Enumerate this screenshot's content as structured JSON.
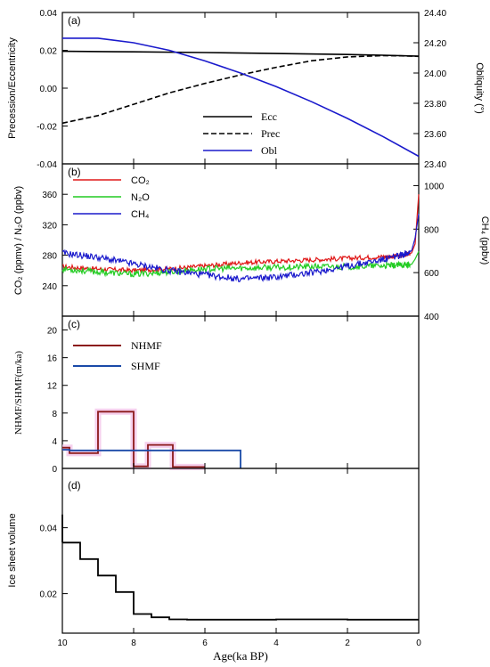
{
  "xaxis": {
    "label": "Age(ka BP)",
    "range": [
      10,
      0
    ],
    "ticks": [
      10,
      8,
      6,
      4,
      2,
      0
    ],
    "tick_labels": [
      "10",
      "8",
      "6",
      "4",
      "2",
      "0"
    ]
  },
  "chart_data": [
    {
      "panel_label": "(a)",
      "type": "line",
      "ylabel": "Precession/Eccentricity",
      "ylim": [
        -0.04,
        0.04
      ],
      "yticks": [
        -0.04,
        -0.02,
        0.0,
        0.02,
        0.04
      ],
      "ytick_labels": [
        "-0.04",
        "-0.02",
        "0.00",
        "0.02",
        "0.04"
      ],
      "ylabel_right": "Obliquity (°)",
      "ylim_right": [
        23.4,
        24.4
      ],
      "yticks_right": [
        23.4,
        23.6,
        23.8,
        24.0,
        24.2,
        24.4
      ],
      "ytick_labels_right": [
        "23.40",
        "23.60",
        "23.80",
        "24.00",
        "24.20",
        "24.40"
      ],
      "legend_position": "bottom-center",
      "series": [
        {
          "name": "Ecc",
          "axis": "left",
          "color": "#000000",
          "dash": "solid",
          "x": [
            10,
            8,
            6,
            4,
            2,
            1,
            0
          ],
          "y": [
            0.0195,
            0.0192,
            0.0188,
            0.0183,
            0.0178,
            0.0174,
            0.0169
          ]
        },
        {
          "name": "Prec",
          "axis": "left",
          "color": "#000000",
          "dash": "dashed",
          "x": [
            10,
            9,
            8,
            7,
            6,
            5,
            4,
            3,
            2,
            1,
            0.5,
            0
          ],
          "y": [
            -0.0185,
            -0.0145,
            -0.0085,
            -0.0025,
            0.0025,
            0.007,
            0.011,
            0.0145,
            0.0165,
            0.0172,
            0.0171,
            0.0168
          ]
        },
        {
          "name": "Obl",
          "axis": "right",
          "color": "#1a1acc",
          "dash": "solid",
          "x": [
            10,
            9,
            8,
            7,
            6,
            5,
            4,
            3,
            2,
            1,
            0
          ],
          "y": [
            24.23,
            24.23,
            24.2,
            24.15,
            24.08,
            24.0,
            23.91,
            23.81,
            23.7,
            23.58,
            23.45
          ]
        }
      ]
    },
    {
      "panel_label": "(b)",
      "type": "line",
      "ylabel": "CO₂ (ppmv) / N₂O (ppbv)",
      "ylim": [
        200,
        400
      ],
      "yticks": [
        240,
        280,
        320,
        360
      ],
      "ytick_labels": [
        "240",
        "280",
        "320",
        "360"
      ],
      "ylabel_right": "CH₄ (ppbv)",
      "ylim_right": [
        400,
        1100
      ],
      "yticks_right": [
        400,
        600,
        800,
        1000
      ],
      "ytick_labels_right": [
        "400",
        "600",
        "800",
        "1000"
      ],
      "legend_position": "top-left",
      "series": [
        {
          "name": "CO₂",
          "axis": "left",
          "color": "#e01818",
          "x": [
            10,
            9,
            8,
            7,
            6,
            5,
            4,
            3,
            2,
            1,
            0.5,
            0.2,
            0.1,
            0
          ],
          "y": [
            265,
            262,
            260,
            262,
            266,
            270,
            272,
            274,
            276,
            278,
            279,
            283,
            295,
            360
          ]
        },
        {
          "name": "N₂O",
          "axis": "left",
          "color": "#22cc22",
          "x": [
            10,
            9,
            8,
            7,
            6,
            5,
            4,
            3,
            2,
            1,
            0.5,
            0.2,
            0.1,
            0
          ],
          "y": [
            262,
            258,
            255,
            258,
            262,
            263,
            264,
            265,
            265,
            266,
            267,
            268,
            275,
            285
          ]
        },
        {
          "name": "CH₄",
          "axis": "right",
          "color": "#1a1acc",
          "x": [
            10,
            9,
            8,
            7,
            6,
            5,
            4,
            3,
            2,
            1,
            0.5,
            0.2,
            0.1,
            0
          ],
          "y": [
            690,
            670,
            640,
            610,
            590,
            570,
            580,
            600,
            630,
            660,
            680,
            700,
            760,
            870
          ]
        }
      ]
    },
    {
      "panel_label": "(c)",
      "type": "line",
      "ylabel": "NHMF/SHMF(m/ka)",
      "ylim": [
        0,
        22
      ],
      "yticks": [
        0,
        4,
        8,
        12,
        16,
        20
      ],
      "ytick_labels": [
        "0",
        "4",
        "8",
        "12",
        "16",
        "20"
      ],
      "legend_position": "top-left",
      "series": [
        {
          "name": "NHMF",
          "color": "#8b1a1a",
          "step": true,
          "x": [
            10,
            9.8,
            9.0,
            8.0,
            7.6,
            6.9,
            6.0
          ],
          "y": [
            3.0,
            2.2,
            8.2,
            0.3,
            3.4,
            0.2,
            0.2
          ]
        },
        {
          "name": "SHMF",
          "color": "#1a4aa8",
          "step": true,
          "x": [
            10,
            9.8,
            5.0
          ],
          "y": [
            2.7,
            2.6,
            0
          ]
        }
      ]
    },
    {
      "panel_label": "(d)",
      "type": "line",
      "ylabel": "Ice sheet volume",
      "ylim": [
        0.008,
        0.058
      ],
      "yticks": [
        0.02,
        0.04
      ],
      "ytick_labels": [
        "0.02",
        "0.04"
      ],
      "series": [
        {
          "name": "",
          "color": "#000000",
          "step": true,
          "x": [
            10,
            9.5,
            9.0,
            8.5,
            8.0,
            7.5,
            7.0,
            6.5,
            6.0,
            5.0,
            4.0,
            3.0,
            2.0,
            1.0,
            0
          ],
          "y": [
            0.0355,
            0.0305,
            0.0255,
            0.0205,
            0.0138,
            0.0128,
            0.0122,
            0.0121,
            0.0121,
            0.0121,
            0.0122,
            0.0122,
            0.0121,
            0.0121,
            0.0121
          ]
        }
      ]
    }
  ]
}
